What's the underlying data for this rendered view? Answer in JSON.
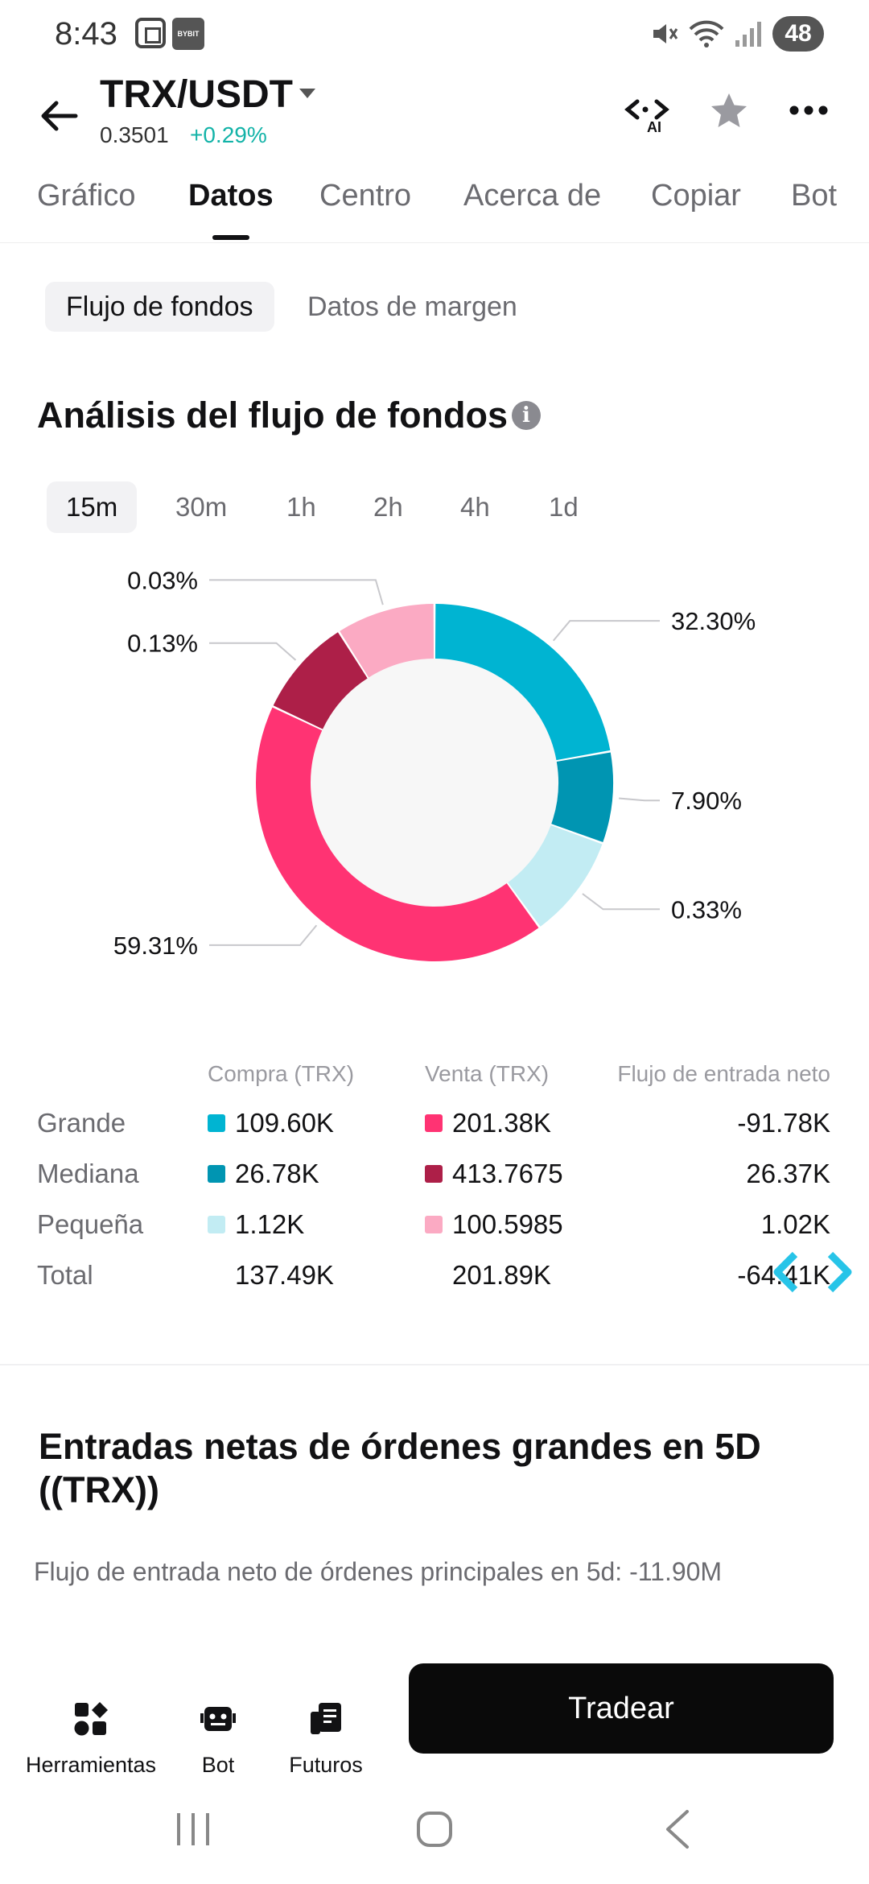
{
  "status_bar": {
    "time": "8:43",
    "app_icon_label": "BYBIT",
    "battery": "48",
    "icons": [
      "screen-record-icon",
      "app-notification-icon",
      "mute-icon",
      "wifi-icon",
      "signal-icon",
      "battery-icon"
    ]
  },
  "header": {
    "pair": "TRX/USDT",
    "price": "0.3501",
    "change": "+0.29%",
    "change_color": "#13b3a8",
    "ai_label": "AI",
    "icons": [
      "back-arrow-icon",
      "dropdown-caret-icon",
      "ai-icon",
      "star-icon",
      "more-icon"
    ]
  },
  "tabs": [
    "Gráfico",
    "Datos",
    "Centro",
    "Acerca de",
    "Copiar",
    "Bot"
  ],
  "active_tab": "Datos",
  "sub_tabs": [
    "Flujo de fondos",
    "Datos de margen"
  ],
  "active_sub_tab": "Flujo de fondos",
  "section_title": "Análisis del flujo de fondos",
  "periods": [
    "15m",
    "30m",
    "1h",
    "2h",
    "4h",
    "1d"
  ],
  "active_period": "15m",
  "chart_data": {
    "type": "pie",
    "donut": true,
    "slices": [
      {
        "label": "32.30%",
        "value": 32.3,
        "color": "#00b4d2",
        "side": "right"
      },
      {
        "label": "7.90%",
        "value": 7.9,
        "color": "#0095b2",
        "side": "right"
      },
      {
        "label": "0.33%",
        "value": 0.33,
        "color": "#c2ecf3",
        "side": "right"
      },
      {
        "label": "59.31%",
        "value": 59.31,
        "color": "#ff3373",
        "side": "left"
      },
      {
        "label": "0.13%",
        "value": 0.13,
        "color": "#ad1f48",
        "side": "left"
      },
      {
        "label": "0.03%",
        "value": 0.03,
        "color": "#fbaac3",
        "side": "left"
      }
    ],
    "center_color": "#f7f7f7"
  },
  "table": {
    "headers": [
      "Compra (TRX)",
      "Venta (TRX)",
      "Flujo de entrada neto"
    ],
    "rows": [
      {
        "label": "Grande",
        "buy": "109.60K",
        "sell": "201.38K",
        "net": "-91.78K",
        "buy_color": "#00b4d2",
        "sell_color": "#ff3373"
      },
      {
        "label": "Mediana",
        "buy": "26.78K",
        "sell": "413.7675",
        "net": "26.37K",
        "buy_color": "#0095b2",
        "sell_color": "#ad1f48"
      },
      {
        "label": "Pequeña",
        "buy": "1.12K",
        "sell": "100.5985",
        "net": "1.02K",
        "buy_color": "#c2ecf3",
        "sell_color": "#fbaac3"
      },
      {
        "label": "Total",
        "buy": "137.49K",
        "sell": "201.89K",
        "net": "-64.41K"
      }
    ]
  },
  "section2": {
    "title": "Entradas netas de órdenes grandes en 5D ((TRX))",
    "subtitle": "Flujo de entrada neto de órdenes principales en 5d: -11.90M"
  },
  "bottom_bar": {
    "items": [
      {
        "label": "Herramientas",
        "icon": "tools-icon"
      },
      {
        "label": "Bot",
        "icon": "bot-icon"
      },
      {
        "label": "Futuros",
        "icon": "futures-icon"
      }
    ],
    "trade_label": "Tradear"
  },
  "nav_bar": {
    "icons": [
      "recent-apps-icon",
      "home-icon",
      "back-nav-icon"
    ]
  }
}
